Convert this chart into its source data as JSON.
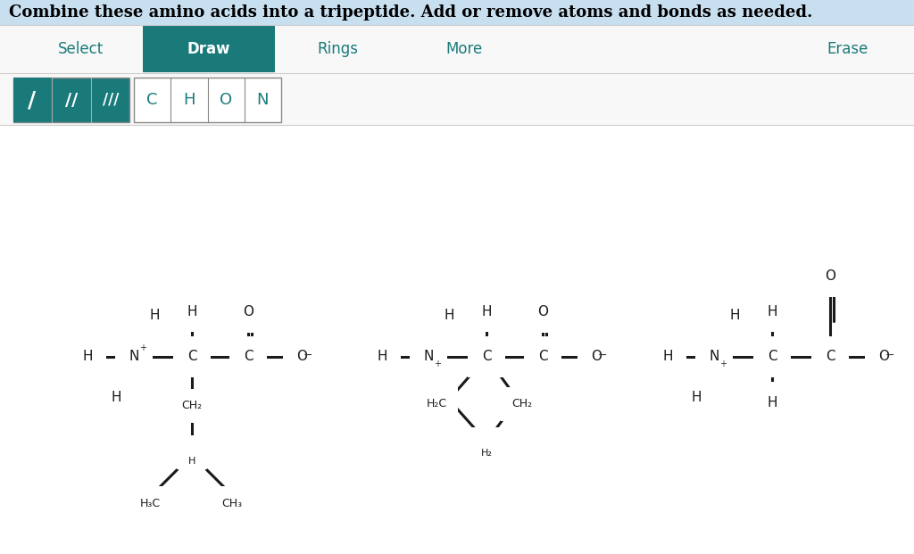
{
  "title_text": "Combine these amino acids into a tripeptide. Add or remove atoms and bonds as needed.",
  "title_bg": "#c8dff0",
  "title_color": "#000000",
  "toolbar_bg": "#ffffff",
  "toolbar_border": "#cccccc",
  "draw_btn_bg": "#1a7a7a",
  "draw_btn_color": "#ffffff",
  "menu_color": "#1a7a7a",
  "menu_items": [
    "Select",
    "Draw",
    "Rings",
    "More",
    "Erase"
  ],
  "bond_btns": [
    "/",
    "//",
    "///"
  ],
  "atom_btns": [
    "C",
    "H",
    "O",
    "N"
  ],
  "bg_color": "#ffffff",
  "bond_color": "#1a1a1a",
  "atom_color": "#1a1a1a",
  "green_circle": "#90ee90",
  "red_circle": "#ffb6b6",
  "plus_color": "#333333",
  "minus_color": "#333333"
}
